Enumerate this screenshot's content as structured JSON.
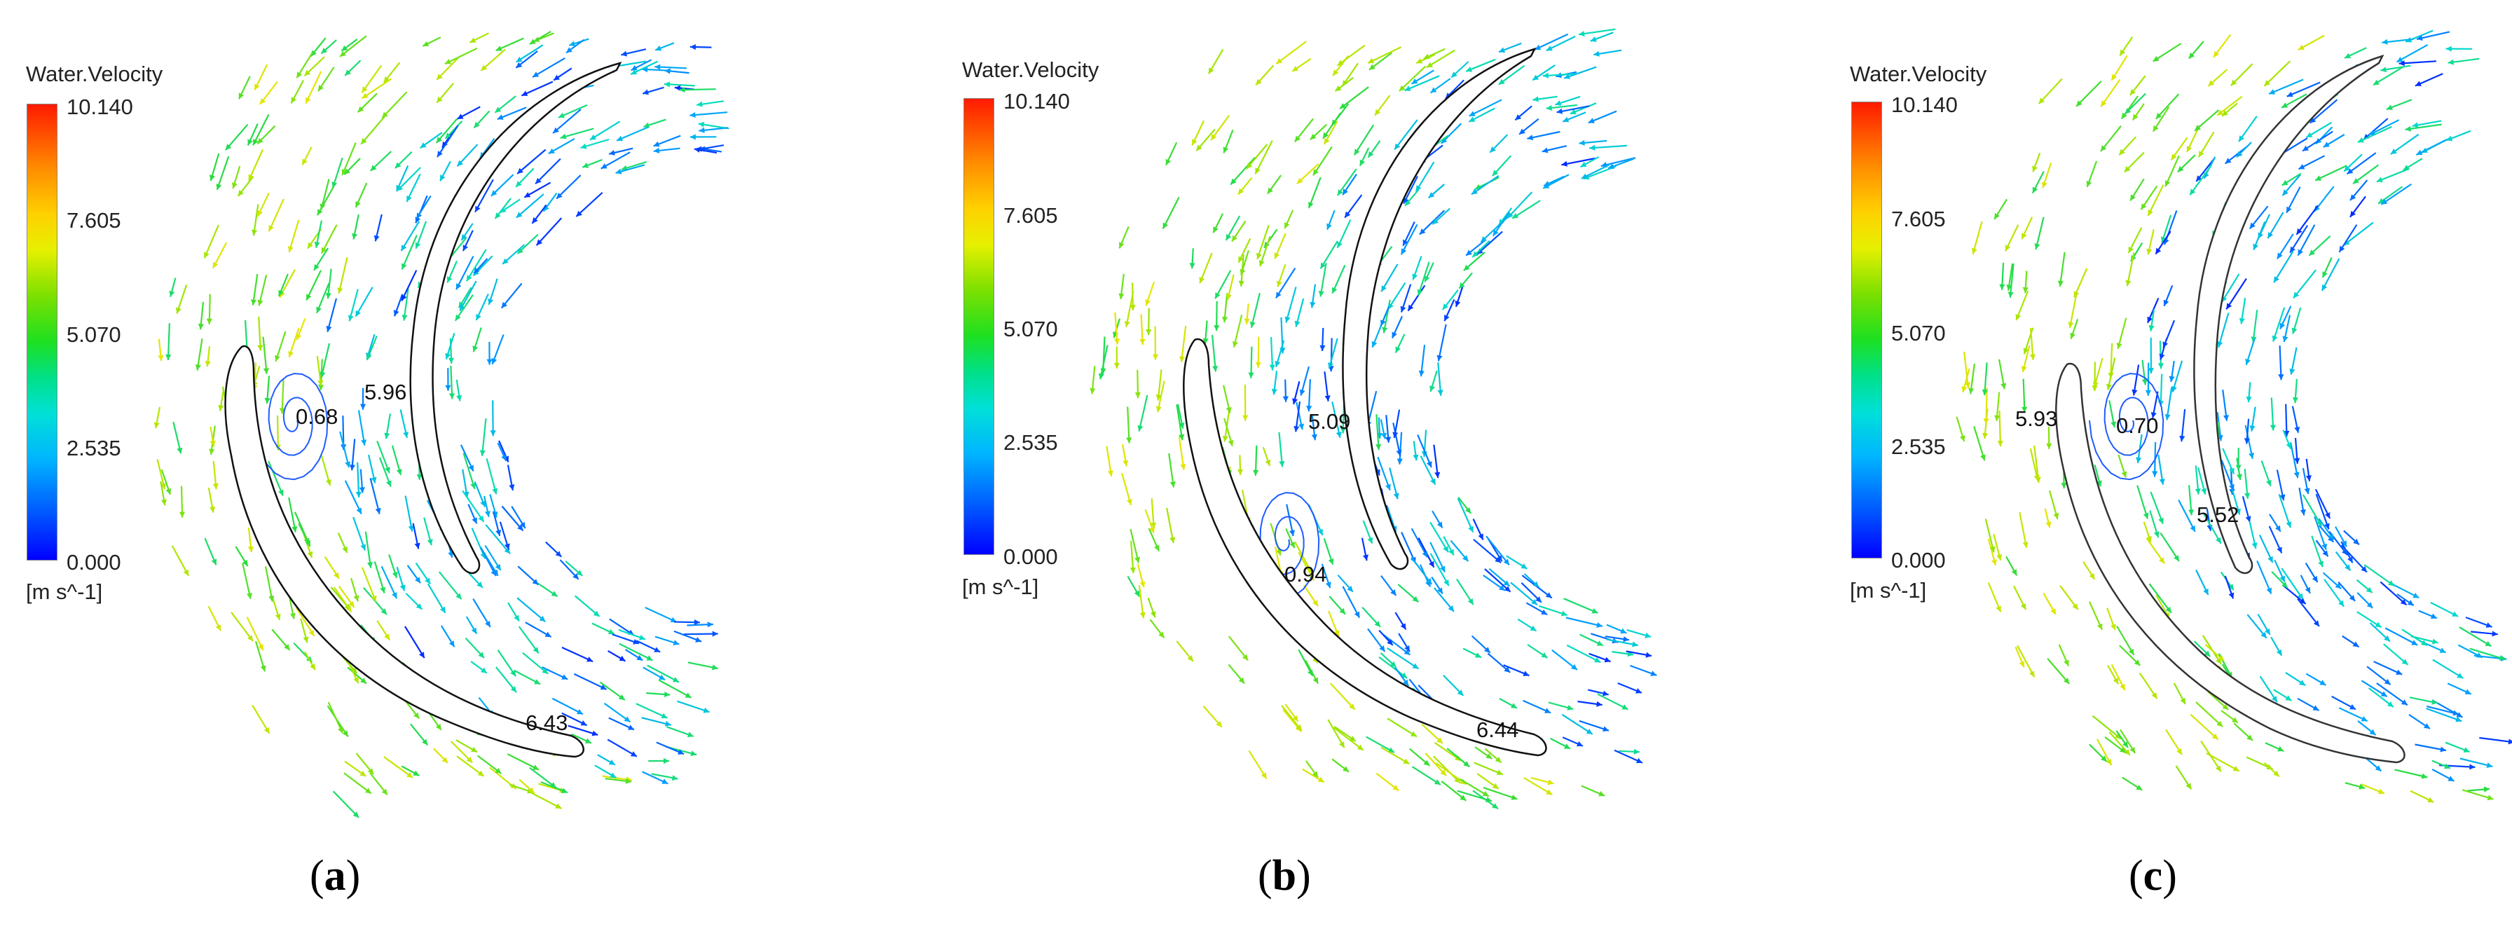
{
  "legend": {
    "title": "Water.Velocity",
    "ticks": [
      "10.140",
      "7.605",
      "5.070",
      "2.535",
      "0.000"
    ],
    "unit": "[m s^-1]",
    "colors": [
      "#ff1a00",
      "#ffd000",
      "#1ee020",
      "#00e0d8",
      "#0000ff"
    ]
  },
  "panels": [
    {
      "caption": "a",
      "annotations": {
        "vortex": "0.68",
        "upper": "5.96",
        "outlet": "6.43"
      }
    },
    {
      "caption": "b",
      "annotations": {
        "upper": "5.09",
        "vortex": "0.94",
        "outlet": "6.44"
      }
    },
    {
      "caption": "c",
      "annotations": {
        "inlet": "5.93",
        "vortex": "0.70",
        "middle": "5.52"
      }
    }
  ]
}
